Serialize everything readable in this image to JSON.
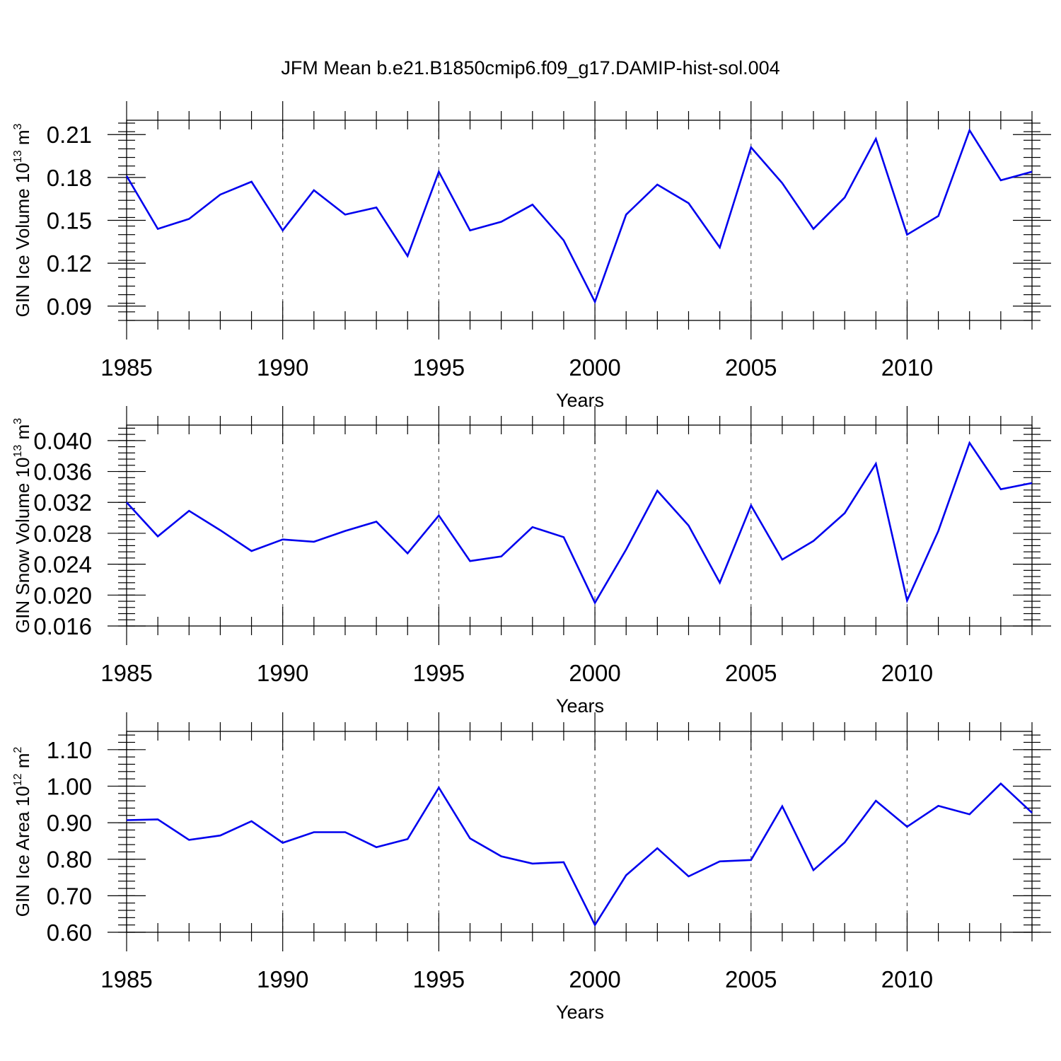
{
  "figure_title": "JFM Mean b.e21.B1850cmip6.f09_g17.DAMIP-hist-sol.004",
  "colors": {
    "line": "#0000ee",
    "grid": "#555555",
    "axis": "#000000"
  },
  "chart_data": [
    {
      "type": "line",
      "title": "JFM Mean b.e21.B1850cmip6.f09_g17.DAMIP-hist-sol.004",
      "xlabel": "Years",
      "ylabel_text": "GIN Ice Volume 10",
      "ylabel_exp": "13",
      "ylabel_unit": " m",
      "ylabel_unit_exp": "3",
      "xlim": [
        1985,
        2014
      ],
      "ylim": [
        0.08,
        0.22
      ],
      "xticks": [
        1985,
        1990,
        1995,
        2000,
        2005,
        2010
      ],
      "xtick_labels": [
        "1985",
        "1990",
        "1995",
        "2000",
        "2005",
        "2010"
      ],
      "yticks": [
        0.09,
        0.12,
        0.15,
        0.18,
        0.21
      ],
      "ytick_labels": [
        "0.09",
        "0.12",
        "0.15",
        "0.18",
        "0.21"
      ],
      "yminor_step": 0.006,
      "grid": "x-dashed",
      "series": [
        {
          "name": "GIN Ice Volume",
          "x": [
            1985,
            1986,
            1987,
            1988,
            1989,
            1990,
            1991,
            1992,
            1993,
            1994,
            1995,
            1996,
            1997,
            1998,
            1999,
            2000,
            2001,
            2002,
            2003,
            2004,
            2005,
            2006,
            2007,
            2008,
            2009,
            2010,
            2011,
            2012,
            2013,
            2014
          ],
          "values": [
            0.181,
            0.144,
            0.151,
            0.168,
            0.177,
            0.143,
            0.171,
            0.154,
            0.159,
            0.125,
            0.184,
            0.143,
            0.149,
            0.161,
            0.136,
            0.093,
            0.154,
            0.175,
            0.162,
            0.131,
            0.201,
            0.176,
            0.144,
            0.166,
            0.207,
            0.14,
            0.153,
            0.213,
            0.178,
            0.184
          ]
        }
      ]
    },
    {
      "type": "line",
      "xlabel": "Years",
      "ylabel_text": "GIN Snow Volume 10",
      "ylabel_exp": "13",
      "ylabel_unit": " m",
      "ylabel_unit_exp": "3",
      "xlim": [
        1985,
        2014
      ],
      "ylim": [
        0.016,
        0.042
      ],
      "xticks": [
        1985,
        1990,
        1995,
        2000,
        2005,
        2010
      ],
      "xtick_labels": [
        "1985",
        "1990",
        "1995",
        "2000",
        "2005",
        "2010"
      ],
      "yticks": [
        0.016,
        0.02,
        0.024,
        0.028,
        0.032,
        0.036,
        0.04
      ],
      "ytick_labels": [
        "0.016",
        "0.020",
        "0.024",
        "0.028",
        "0.032",
        "0.036",
        "0.040"
      ],
      "yminor_step": 0.0008,
      "grid": "x-dashed",
      "series": [
        {
          "name": "GIN Snow Volume",
          "x": [
            1985,
            1986,
            1987,
            1988,
            1989,
            1990,
            1991,
            1992,
            1993,
            1994,
            1995,
            1996,
            1997,
            1998,
            1999,
            2000,
            2001,
            2002,
            2003,
            2004,
            2005,
            2006,
            2007,
            2008,
            2009,
            2010,
            2011,
            2012,
            2013,
            2014
          ],
          "values": [
            0.032,
            0.0276,
            0.0309,
            0.0284,
            0.0257,
            0.0272,
            0.0269,
            0.0283,
            0.0295,
            0.0254,
            0.0303,
            0.0244,
            0.025,
            0.0288,
            0.0275,
            0.019,
            0.0259,
            0.0335,
            0.029,
            0.0216,
            0.0316,
            0.0246,
            0.027,
            0.0306,
            0.037,
            0.0193,
            0.0283,
            0.0397,
            0.0337,
            0.0345
          ]
        }
      ]
    },
    {
      "type": "line",
      "xlabel": "Years",
      "ylabel_text": "GIN Ice Area 10",
      "ylabel_exp": "12",
      "ylabel_unit": " m",
      "ylabel_unit_exp": "2",
      "xlim": [
        1985,
        2014
      ],
      "ylim": [
        0.6,
        1.15
      ],
      "xticks": [
        1985,
        1990,
        1995,
        2000,
        2005,
        2010
      ],
      "xtick_labels": [
        "1985",
        "1990",
        "1995",
        "2000",
        "2005",
        "2010"
      ],
      "yticks": [
        0.6,
        0.7,
        0.8,
        0.9,
        1.0,
        1.1
      ],
      "ytick_labels": [
        "0.60",
        "0.70",
        "0.80",
        "0.90",
        "1.00",
        "1.10"
      ],
      "yminor_step": 0.02,
      "grid": "x-dashed",
      "series": [
        {
          "name": "GIN Ice Area",
          "x": [
            1985,
            1986,
            1987,
            1988,
            1989,
            1990,
            1991,
            1992,
            1993,
            1994,
            1995,
            1996,
            1997,
            1998,
            1999,
            2000,
            2001,
            2002,
            2003,
            2004,
            2005,
            2006,
            2007,
            2008,
            2009,
            2010,
            2011,
            2012,
            2013,
            2014
          ],
          "values": [
            0.907,
            0.909,
            0.853,
            0.865,
            0.904,
            0.845,
            0.874,
            0.874,
            0.833,
            0.855,
            0.996,
            0.857,
            0.808,
            0.788,
            0.792,
            0.62,
            0.756,
            0.83,
            0.753,
            0.794,
            0.798,
            0.945,
            0.77,
            0.846,
            0.96,
            0.889,
            0.946,
            0.923,
            1.007,
            0.927
          ]
        }
      ]
    }
  ]
}
